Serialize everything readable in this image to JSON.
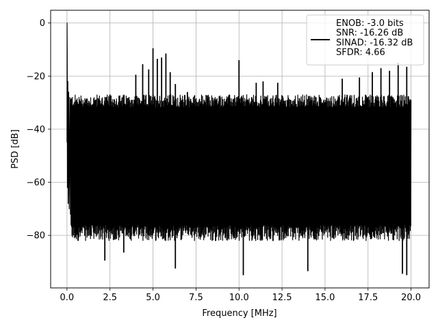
{
  "chart_data": {
    "type": "line",
    "xlabel": "Frequency [MHz]",
    "ylabel": "PSD [dB]",
    "xlim": [
      -0.95,
      21.05
    ],
    "ylim": [
      -99.8,
      4.8
    ],
    "xticks": [
      0.0,
      2.5,
      5.0,
      7.5,
      10.0,
      12.5,
      15.0,
      17.5,
      20.0
    ],
    "xtick_labels": [
      "0.0",
      "2.5",
      "5.0",
      "7.5",
      "10.0",
      "12.5",
      "15.0",
      "17.5",
      "20.0"
    ],
    "yticks": [
      0,
      -20,
      -40,
      -60,
      -80
    ],
    "ytick_labels": [
      "0",
      "−20",
      "−40",
      "−60",
      "−80"
    ],
    "grid": true,
    "legend_position": "upper right",
    "series": [
      {
        "name": "ENOB: -3.0 bits\nSNR: -16.26 dB\nSINAD: -16.32 dB\nSFDR: 4.66",
        "color": "#000000",
        "x_range_mhz": [
          0,
          20
        ],
        "peak_value_db": 0,
        "noise_envelope_upper_db": -30,
        "noise_envelope_lower_db": -80,
        "spurs": [
          {
            "x": 4.0,
            "y": -19.5
          },
          {
            "x": 4.4,
            "y": -15.5
          },
          {
            "x": 4.75,
            "y": -17.5
          },
          {
            "x": 5.0,
            "y": -9.5
          },
          {
            "x": 5.25,
            "y": -13.5
          },
          {
            "x": 5.5,
            "y": -13.0
          },
          {
            "x": 5.75,
            "y": -11.5
          },
          {
            "x": 6.0,
            "y": -18.5
          },
          {
            "x": 6.3,
            "y": -23.0
          },
          {
            "x": 7.0,
            "y": -26.0
          },
          {
            "x": 10.0,
            "y": -14.0
          },
          {
            "x": 11.0,
            "y": -22.5
          },
          {
            "x": 11.4,
            "y": -22.0
          },
          {
            "x": 12.25,
            "y": -22.5
          },
          {
            "x": 16.0,
            "y": -21.0
          },
          {
            "x": 17.0,
            "y": -20.5
          },
          {
            "x": 17.75,
            "y": -18.5
          },
          {
            "x": 18.25,
            "y": -17.0
          },
          {
            "x": 18.75,
            "y": -18.0
          },
          {
            "x": 19.25,
            "y": -15.0
          },
          {
            "x": 19.75,
            "y": -16.5
          }
        ],
        "dips": [
          {
            "x": 2.2,
            "y": -89.5
          },
          {
            "x": 3.3,
            "y": -86.5
          },
          {
            "x": 6.3,
            "y": -92.5
          },
          {
            "x": 10.25,
            "y": -95.0
          },
          {
            "x": 14.0,
            "y": -93.5
          },
          {
            "x": 19.5,
            "y": -94.5
          },
          {
            "x": 19.75,
            "y": -95.0
          }
        ]
      }
    ]
  }
}
